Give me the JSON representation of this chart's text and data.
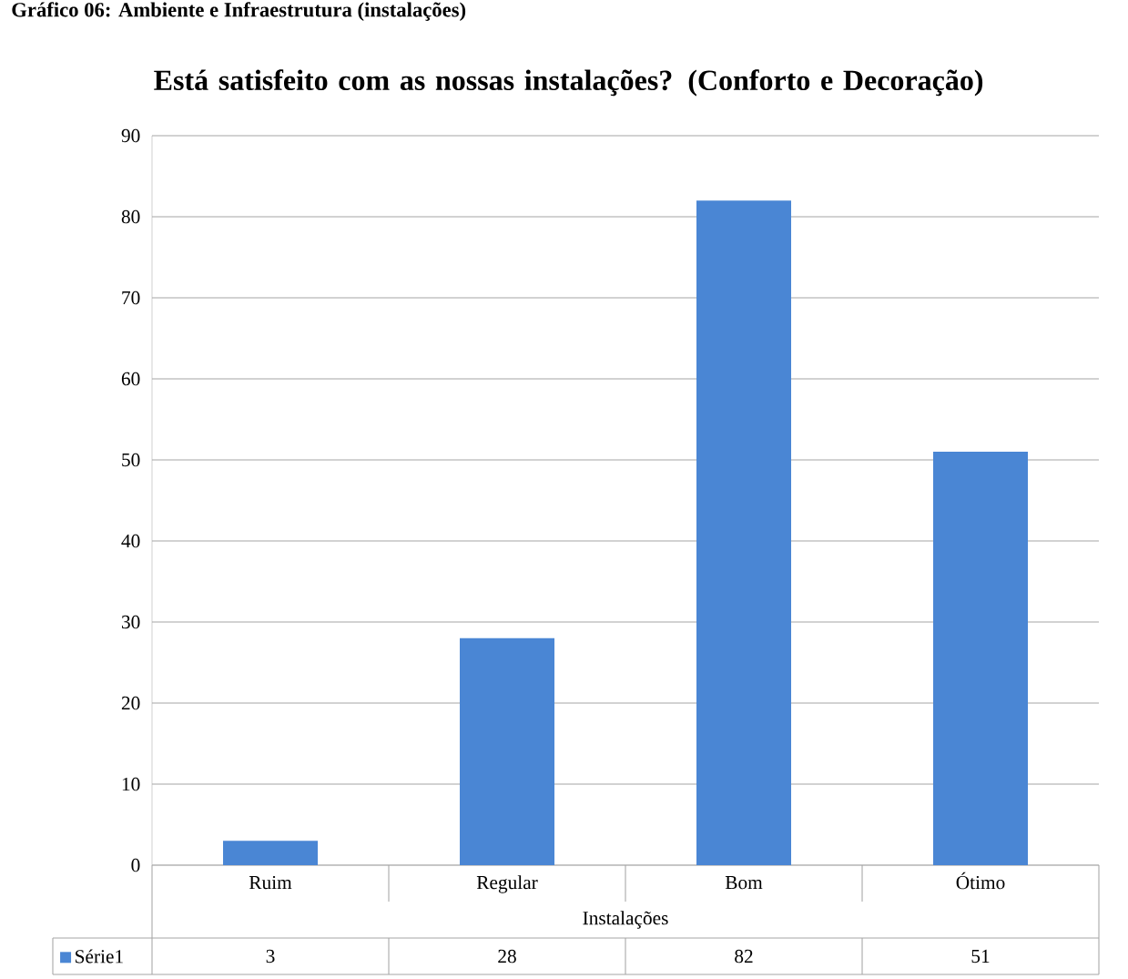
{
  "chart_data": {
    "type": "bar",
    "title": "Está satisfeito com as nossas instalações? (Conforto e Decoração)",
    "xlabel": "Instalações",
    "annotations": [
      "Gráfico 06: Ambiente e Infraestrutura (instalações)"
    ],
    "categories": [
      "Ruim",
      "Regular",
      "Bom",
      "Ótimo"
    ],
    "series": [
      {
        "name": "Série1",
        "color": "#4a86d4",
        "values": [
          3,
          28,
          82,
          51
        ]
      }
    ],
    "ylim": [
      0,
      90
    ],
    "yticks": [
      0,
      10,
      20,
      30,
      40,
      50,
      60,
      70,
      80,
      90
    ],
    "grid": "y",
    "data_labels": true
  }
}
